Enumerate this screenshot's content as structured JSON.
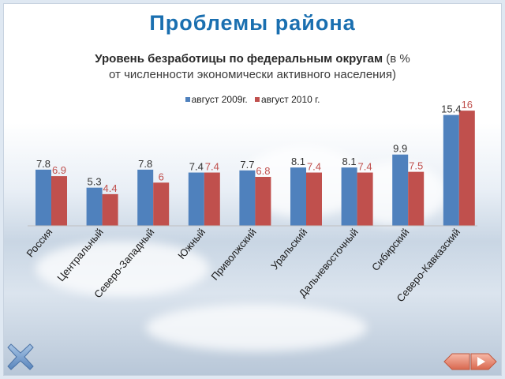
{
  "page": {
    "title": "Проблемы  района"
  },
  "chart_data": {
    "type": "bar",
    "title_bold": "Уровень безработицы по федеральным округам",
    "title_rest": "(в %",
    "subtitle": "от численности экономически активного населения)",
    "categories": [
      "Россия",
      "Центральный",
      "Северо-Западный",
      "Южный",
      "Приволжский",
      "Уральский",
      "Дальневосточный",
      "Сибирский",
      "Северо-Кавказский"
    ],
    "series": [
      {
        "name": "август 2009г.",
        "color": "#4f81bd",
        "values": [
          7.8,
          5.3,
          7.8,
          7.4,
          7.7,
          8.1,
          8.1,
          9.9,
          15.4
        ]
      },
      {
        "name": "август 2010 г.",
        "color": "#c0504d",
        "values": [
          6.9,
          4.4,
          6,
          7.4,
          6.8,
          7.4,
          7.4,
          7.5,
          16
        ]
      }
    ],
    "ylim": [
      0,
      17
    ],
    "grid": false,
    "legend_position": "top"
  },
  "nav": {
    "close_icon": "close-x-icon",
    "prev_icon": "prev-arrow-icon",
    "next_icon": "next-arrow-icon"
  }
}
